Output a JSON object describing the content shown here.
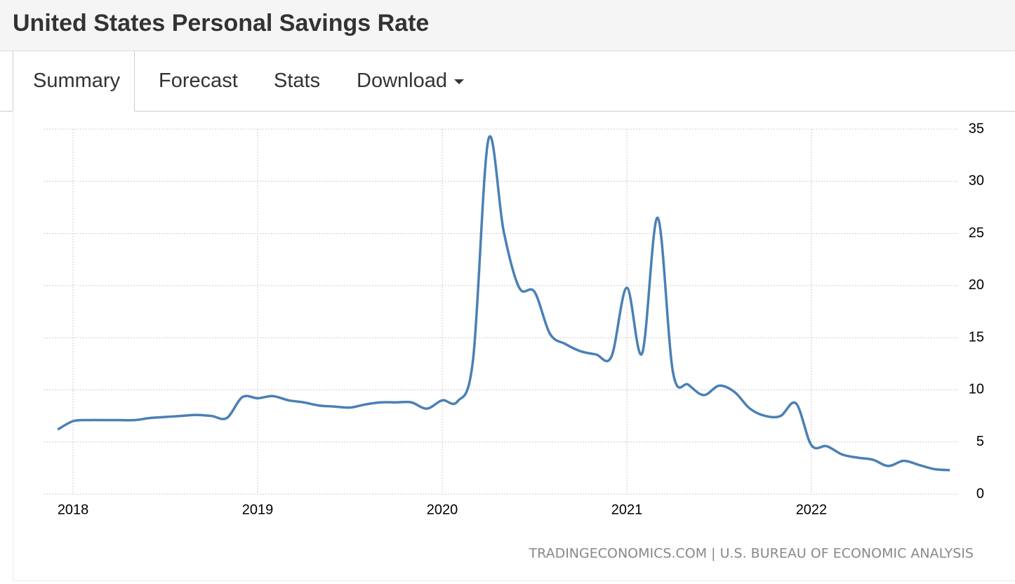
{
  "header": {
    "title": "United States Personal Savings Rate"
  },
  "tabs": [
    "Summary",
    "Forecast",
    "Stats",
    "Download"
  ],
  "chart_data": {
    "type": "line",
    "source": "TRADINGECONOMICS.COM | U.S. BUREAU OF ECONOMIC ANALYSIS",
    "x": [
      2017.917,
      2018,
      2018.083,
      2018.167,
      2018.25,
      2018.333,
      2018.417,
      2018.5,
      2018.583,
      2018.667,
      2018.75,
      2018.833,
      2018.917,
      2019,
      2019.083,
      2019.167,
      2019.25,
      2019.333,
      2019.417,
      2019.5,
      2019.583,
      2019.667,
      2019.75,
      2019.833,
      2019.917,
      2020,
      2020.083,
      2020.167,
      2020.25,
      2020.333,
      2020.417,
      2020.5,
      2020.583,
      2020.667,
      2020.75,
      2020.833,
      2020.917,
      2021,
      2021.083,
      2021.167,
      2021.25,
      2021.333,
      2021.417,
      2021.5,
      2021.583,
      2021.667,
      2021.75,
      2021.833,
      2021.917,
      2022,
      2022.083,
      2022.167,
      2022.25,
      2022.333,
      2022.417,
      2022.5,
      2022.583,
      2022.667,
      2022.75
    ],
    "series": [
      {
        "name": "Personal Savings Rate",
        "color": "#4a80b5",
        "values": [
          6.2,
          7.0,
          7.1,
          7.1,
          7.1,
          7.1,
          7.3,
          7.4,
          7.5,
          7.6,
          7.5,
          7.3,
          9.3,
          9.2,
          9.4,
          9.0,
          8.8,
          8.5,
          8.4,
          8.3,
          8.6,
          8.8,
          8.8,
          8.8,
          8.2,
          9.0,
          8.9,
          12.9,
          34.0,
          25.2,
          19.8,
          19.4,
          15.4,
          14.4,
          13.7,
          13.4,
          13.2,
          19.8,
          13.5,
          26.5,
          11.7,
          10.5,
          9.5,
          10.4,
          9.8,
          8.2,
          7.5,
          7.5,
          8.7,
          4.7,
          4.6,
          3.8,
          3.5,
          3.3,
          2.7,
          3.2,
          2.8,
          2.4,
          2.3
        ]
      }
    ],
    "xlim": [
      2017.84,
      2022.795
    ],
    "xticks": [
      2018,
      2019,
      2020,
      2021,
      2022
    ],
    "ylim": [
      0,
      35
    ],
    "yticks": [
      0,
      5,
      10,
      15,
      20,
      25,
      30,
      35
    ],
    "grid": true
  }
}
